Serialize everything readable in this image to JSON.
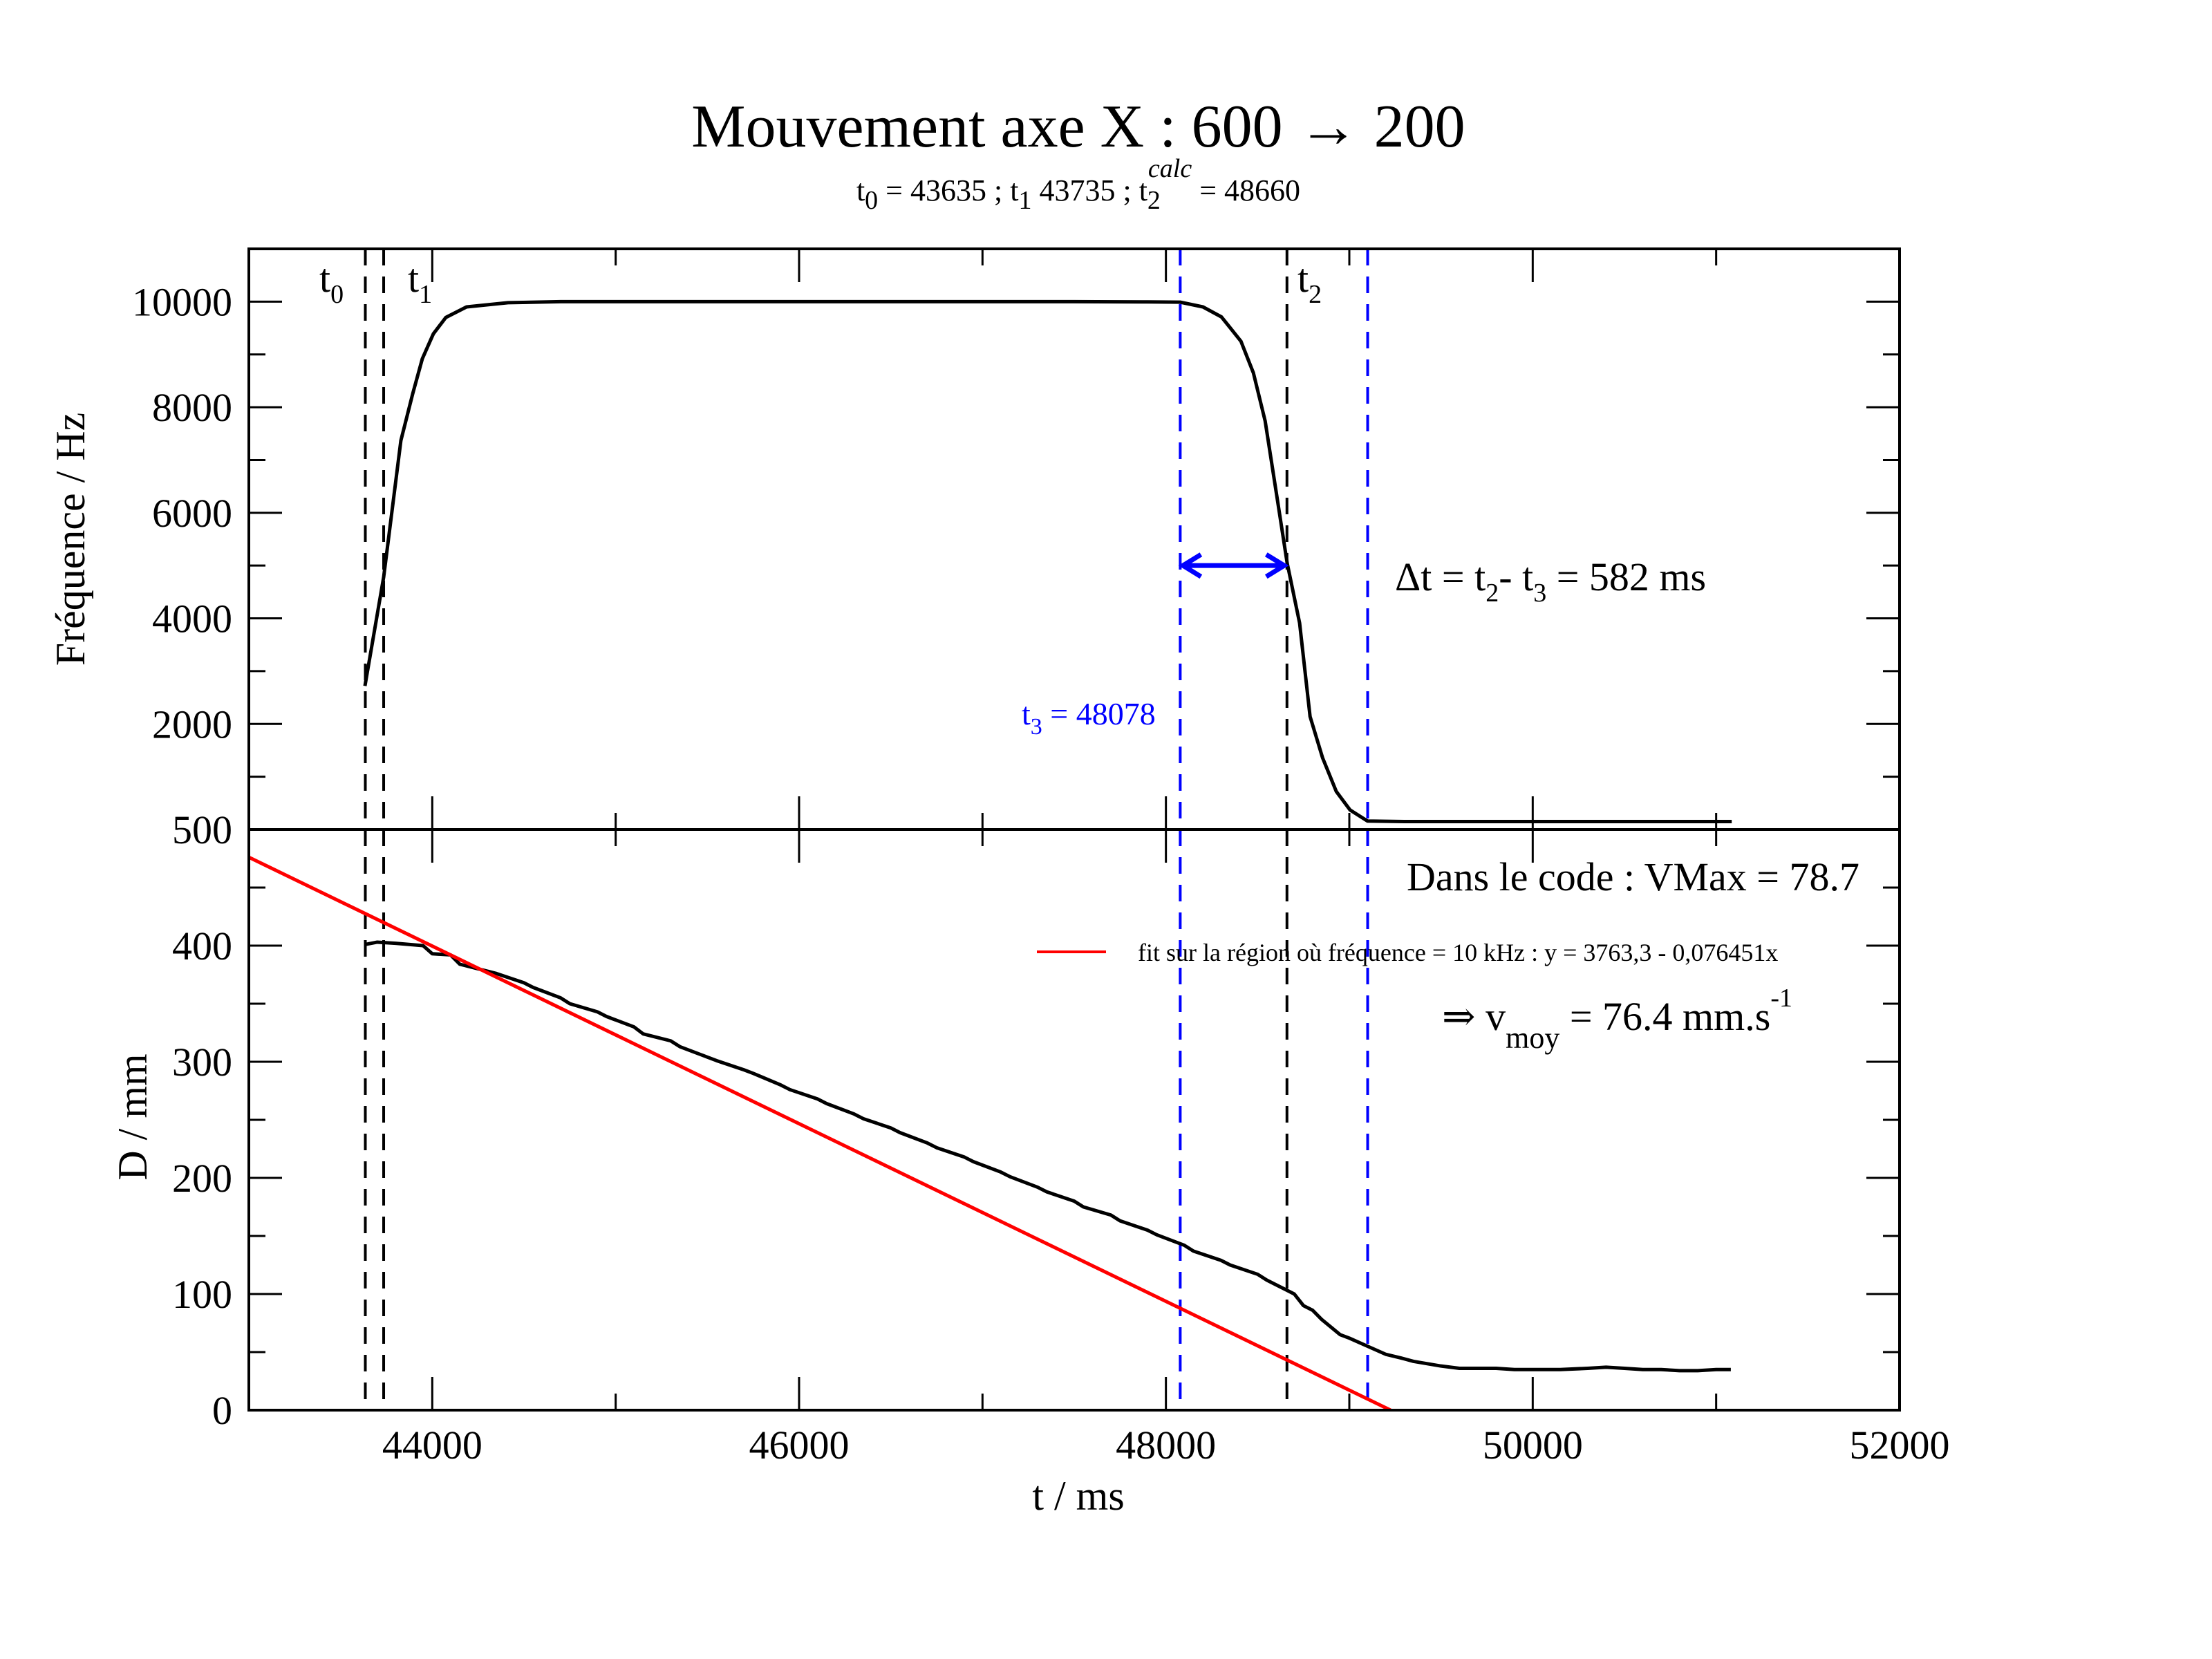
{
  "chart_data": [
    {
      "panel": "top",
      "type": "line",
      "title": "Mouvement axe X : 600 → 200",
      "subtitle": {
        "t0_sym": "t",
        "t0_sub": "0",
        "t0_val": " = 43635 ; ",
        "t1_sym": "t",
        "t1_sub": "1",
        "t1_val": " 43735 ; ",
        "t2_sym": "t",
        "t2_sub": "2",
        "t2_sup": "calc",
        "t2_val": " = 48660"
      },
      "ylabel": "Fréquence / Hz",
      "xlim": [
        43000,
        52000
      ],
      "ylim": [
        0,
        11000
      ],
      "yticks": [
        {
          "value": 10000,
          "label": "10000"
        },
        {
          "value": 8000,
          "label": "8000"
        },
        {
          "value": 6000,
          "label": "6000"
        },
        {
          "value": 4000,
          "label": "4000"
        },
        {
          "value": 2000,
          "label": "2000"
        }
      ],
      "series": [
        {
          "name": "Fréquence",
          "color": "#000000",
          "x": [
            43633,
            43735,
            43829,
            43893,
            43946,
            44006,
            44074,
            44187,
            44413,
            44700,
            45500,
            46500,
            47500,
            47900,
            48078,
            48202,
            48303,
            48409,
            48477,
            48541,
            48605,
            48661,
            48729,
            48786,
            48854,
            48929,
            49004,
            49099,
            49300,
            50000,
            50500,
            51085
          ],
          "y": [
            2720,
            4780,
            7370,
            8250,
            8920,
            9390,
            9700,
            9900,
            9980,
            10000,
            10000,
            10000,
            10000,
            9995,
            9990,
            9900,
            9710,
            9250,
            8650,
            7740,
            6310,
            5050,
            3910,
            2140,
            1360,
            720,
            370,
            160,
            150,
            150,
            150,
            150
          ]
        }
      ],
      "vlines": [
        {
          "name": "t0",
          "x": 43635,
          "color": "#000000",
          "label_sym": "t",
          "label_sub": "0"
        },
        {
          "name": "t1",
          "x": 43735,
          "color": "#000000",
          "label_sym": "t",
          "label_sub": "1"
        },
        {
          "name": "t2",
          "x": 48660,
          "color": "#000000",
          "label_sym": "t",
          "label_sub": "2"
        },
        {
          "name": "t3",
          "x": 48078,
          "color": "#0000ff"
        },
        {
          "name": "t4",
          "x": 49100,
          "color": "#0000ff"
        }
      ],
      "arrow": {
        "x_from": 48078,
        "x_to": 48660,
        "y": 5000,
        "color": "#0000ff"
      },
      "annotations": {
        "delta": {
          "pre": "Δt = t",
          "sub1": "2",
          "mid": "- t",
          "sub2": "3",
          "post": " = 582 ms"
        },
        "t3_label": {
          "sym": "t",
          "sub": "3",
          "val": " = 48078"
        }
      }
    },
    {
      "panel": "bottom",
      "type": "line",
      "xlabel": "t / ms",
      "ylabel": "D / mm",
      "xlim": [
        43000,
        52000
      ],
      "ylim": [
        0,
        500
      ],
      "xticks": [
        {
          "value": 44000,
          "label": "44000"
        },
        {
          "value": 46000,
          "label": "46000"
        },
        {
          "value": 48000,
          "label": "48000"
        },
        {
          "value": 50000,
          "label": "50000"
        },
        {
          "value": 52000,
          "label": "52000"
        }
      ],
      "yticks": [
        {
          "value": 500,
          "label": "500"
        },
        {
          "value": 400,
          "label": "400"
        },
        {
          "value": 300,
          "label": "300"
        },
        {
          "value": 200,
          "label": "200"
        },
        {
          "value": 100,
          "label": "100"
        },
        {
          "value": 0,
          "label": "0"
        }
      ],
      "series": [
        {
          "name": "D",
          "color": "#000000",
          "x": [
            43635,
            43700,
            43800,
            43950,
            44000,
            44100,
            44150,
            44300,
            44350,
            44500,
            44550,
            44700,
            44750,
            44900,
            44950,
            45100,
            45150,
            45300,
            45350,
            45500,
            45550,
            45700,
            45750,
            45900,
            45950,
            46100,
            46150,
            46300,
            46350,
            46500,
            46550,
            46700,
            46750,
            46900,
            46950,
            47100,
            47150,
            47300,
            47350,
            47500,
            47550,
            47700,
            47750,
            47900,
            47950,
            48100,
            48150,
            48300,
            48350,
            48500,
            48550,
            48650,
            48700,
            48750,
            48800,
            48850,
            48950,
            49000,
            49100,
            49200,
            49280,
            49350,
            49500,
            49600,
            49700,
            49800,
            49900,
            50000,
            50150,
            50300,
            50400,
            50500,
            50600,
            50700,
            50800,
            50900,
            51000,
            51080
          ],
          "y": [
            401,
            403,
            402,
            400,
            393,
            392,
            384,
            378,
            376,
            368,
            364,
            355,
            350,
            343,
            339,
            330,
            324,
            318,
            313,
            304,
            301,
            293,
            290,
            280,
            276,
            268,
            264,
            255,
            251,
            243,
            239,
            230,
            226,
            218,
            214,
            205,
            201,
            192,
            188,
            180,
            175,
            168,
            163,
            155,
            151,
            142,
            137,
            129,
            125,
            117,
            112,
            104,
            100,
            90,
            86,
            78,
            65,
            62,
            55,
            48,
            45,
            42,
            38,
            36,
            36,
            36,
            35,
            35,
            35,
            36,
            37,
            36,
            35,
            35,
            34,
            34,
            35,
            35
          ]
        },
        {
          "name": "fit sur la région où fréquence = 10 kHz : y = 3763,3 - 0,076451x",
          "color": "#ff0000",
          "fit": {
            "intercept": 3763.3,
            "slope": -0.076451
          },
          "x": [
            43000,
            49225
          ],
          "y": [
            476.1,
            0
          ]
        }
      ],
      "vlines": [
        {
          "name": "t0",
          "x": 43635,
          "color": "#000000"
        },
        {
          "name": "t1",
          "x": 43735,
          "color": "#000000"
        },
        {
          "name": "t2",
          "x": 48660,
          "color": "#000000"
        },
        {
          "name": "t3",
          "x": 48078,
          "color": "#0000ff"
        },
        {
          "name": "t4",
          "x": 49100,
          "color": "#0000ff"
        }
      ],
      "legend": {
        "placement": "top-right",
        "text": "fit sur la région où fréquence = 10 kHz : y = 3763,3 - 0,076451x",
        "color": "#ff0000"
      },
      "annotations": {
        "vmax": "Dans le code : VMax = 78.7",
        "vmoy": {
          "pre": "⇒ v",
          "sub": "moy",
          "mid": " = 76.4 mm.s",
          "sup": "-1"
        }
      }
    }
  ]
}
